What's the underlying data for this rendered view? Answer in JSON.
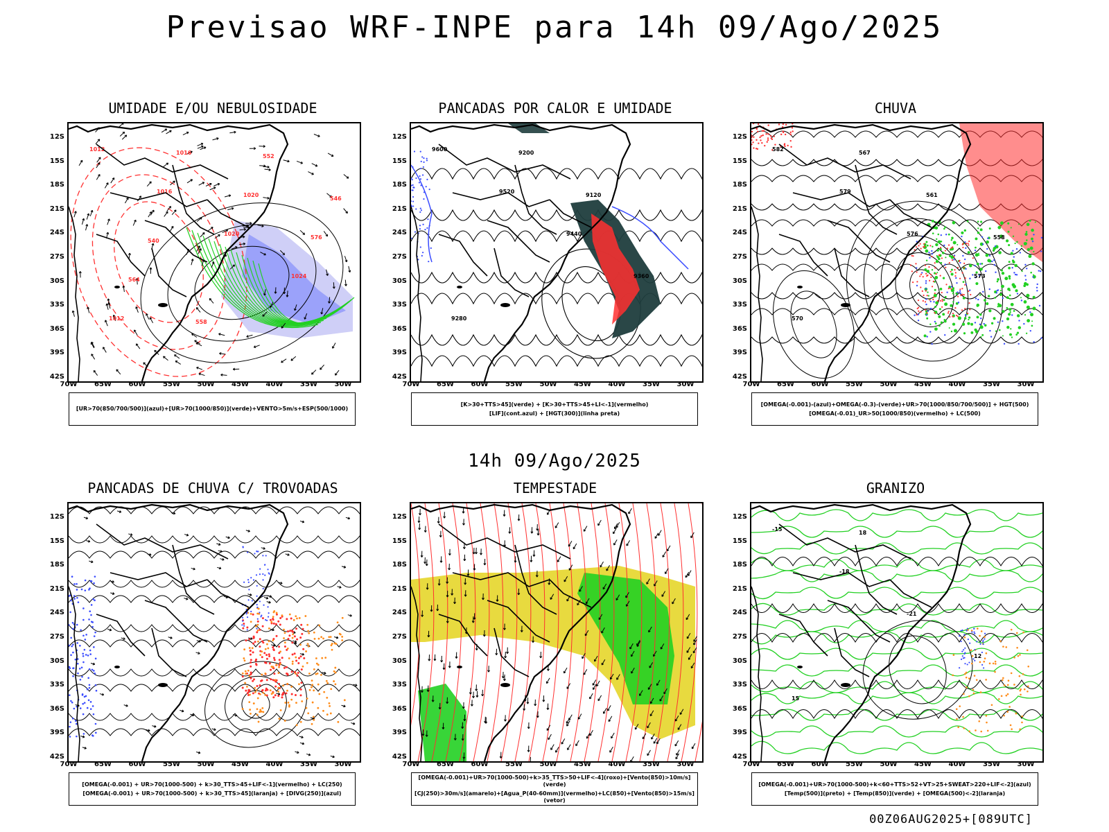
{
  "title": "Previsao WRF-INPE  para 14h 09/Ago/2025",
  "mid_title": "14h 09/Ago/2025",
  "footer": "00Z06AUG2025+[089UTC]",
  "lat_ticks": [
    "12S",
    "15S",
    "18S",
    "21S",
    "24S",
    "27S",
    "30S",
    "33S",
    "36S",
    "39S",
    "42S"
  ],
  "lon_ticks": [
    "70W",
    "65W",
    "60W",
    "55W",
    "50W",
    "45W",
    "40W",
    "35W",
    "30W"
  ],
  "panels": [
    {
      "title": "UMIDADE E/OU NEBULOSIDADE",
      "legend": [
        "[UR>70(850/700/500)](azul)+[UR>70(1000/850)](verde)+VENTO>5m/s+ESP(500/1000)"
      ],
      "contour_labels": [
        "1012",
        "1016",
        "1020",
        "1024",
        "1012",
        "1016",
        "1020",
        "576",
        "564",
        "558",
        "552",
        "546",
        "540"
      ]
    },
    {
      "title": "PANCADAS POR CALOR E UMIDADE",
      "legend": [
        "[K>30+TTS>45](verde) + [K>30+TTS>45+LI<-1](vermelho)",
        "[LIF](cont.azul) + [HGT(300)](linha preta)"
      ],
      "contour_labels": [
        "9600",
        "9520",
        "9440",
        "9360",
        "9280",
        "9200",
        "9120"
      ]
    },
    {
      "title": "CHUVA",
      "legend": [
        "[OMEGA(-0.001)-(azul)+OMEGA(-0.3)-(verde)+UR>70(1000/850/700/500)] + HGT(500)",
        "[OMEGA(-0.01)_UR>50(1000/850)(vermelho) + LC(500)"
      ],
      "contour_labels": [
        "582",
        "579",
        "576",
        "573",
        "570",
        "567",
        "561",
        "558"
      ]
    },
    {
      "title": "PANCADAS DE CHUVA C/ TROVOADAS",
      "legend": [
        "[OMEGA(-0.001) + UR>70(1000-500) + k>30_TTS>45+LIF<-1](vermelho) + LC(250)",
        "[OMEGA(-0.001) + UR>70(1000-500) + k>30_TTS>45](laranja) + [DIVG(250)](azul)"
      ],
      "contour_labels": []
    },
    {
      "title": "TEMPESTADE",
      "legend": [
        "[OMEGA(-0.001)+UR>70(1000-500)+k>35_TTS>50+LIF<-4](roxo)+[Vento(850)>10m/s](verde)",
        "[CJ(250)>30m/s](amarelo)+[Agua_P(40-60mm)](vermelho)+LC(850)+[Vento(850)>15m/s](vetor)"
      ],
      "contour_labels": []
    },
    {
      "title": "GRANIZO",
      "legend": [
        "[OMEGA(-0.001)+UR>70(1000-500)+k<60+TTS>52+VT>25+SWEAT>220+LIF<-2](azul)",
        "[Temp(500)](preto) + [Temp(850)](verde) + [OMEGA(500)<-2](laranja)"
      ],
      "contour_labels": [
        "-15",
        "-18",
        "-21",
        "12",
        "15",
        "18"
      ]
    }
  ],
  "colors": {
    "coast": "#000000",
    "blue": "#3a4cff",
    "green": "#22d022",
    "red": "#ff3030",
    "orange": "#ff8c1a",
    "yellow": "#e6d62a",
    "lavender": "#a8a8f0",
    "darkteal": "#1f3d3d"
  }
}
